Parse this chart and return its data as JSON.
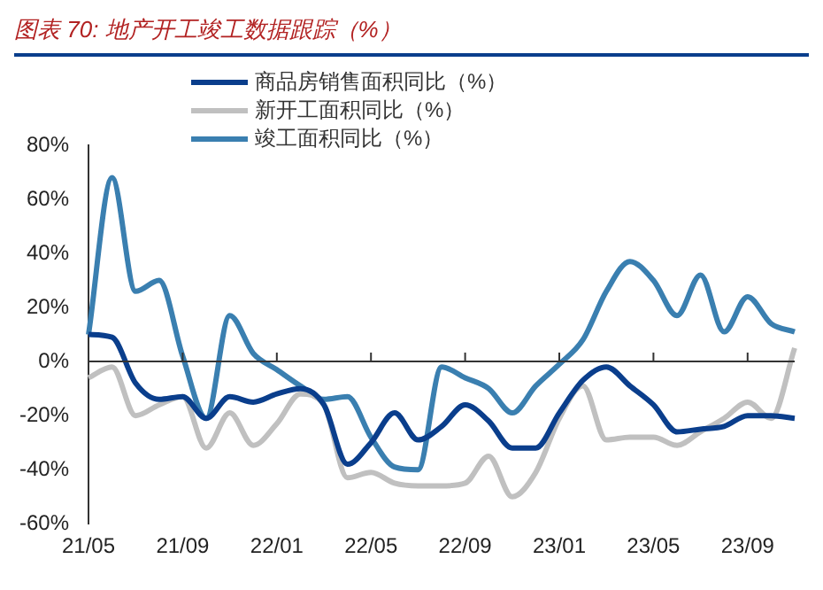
{
  "chart_data": {
    "type": "line",
    "title": "图表 70: 地产开工竣工数据跟踪（%）",
    "categories": [
      "21/05",
      null,
      null,
      null,
      "21/09",
      null,
      null,
      null,
      "22/01",
      null,
      null,
      null,
      "22/05",
      null,
      null,
      null,
      "22/09",
      null,
      null,
      null,
      "23/01",
      null,
      null,
      null,
      "23/05",
      null,
      null,
      null,
      "23/09",
      null,
      null
    ],
    "series": [
      {
        "name": "商品房销售面积同比（%）",
        "color": "#0a3e8c",
        "values": [
          10,
          9,
          -8,
          -14,
          -13,
          -21,
          -13,
          -15,
          -12,
          -10,
          -16,
          -38,
          -30,
          -19,
          -29,
          -24,
          -16,
          -22,
          -32,
          -32,
          -19,
          -7,
          -2,
          -9,
          -16,
          -26,
          -25,
          -24,
          -20,
          -20,
          -21
        ]
      },
      {
        "name": "新开工面积同比（%）",
        "color": "#c0c0c0",
        "values": [
          -6,
          -2,
          -20,
          -16,
          -13,
          -32,
          -19,
          -31,
          -23,
          -12,
          -16,
          -43,
          -41,
          -45,
          -46,
          -46,
          -45,
          -35,
          -50,
          -41,
          -21,
          -9,
          -29,
          -28,
          -28,
          -31,
          -26,
          -21,
          -15,
          -21,
          5
        ]
      },
      {
        "name": "竣工面积同比（%）",
        "color": "#3a7fb0",
        "values": [
          10,
          68,
          26,
          30,
          2,
          -21,
          17,
          3,
          -3,
          -9,
          -14,
          -13,
          -28,
          -39,
          -40,
          -2,
          -6,
          -10,
          -19,
          -9,
          -1,
          8,
          26,
          37,
          30,
          17,
          32,
          11,
          24,
          14,
          11
        ]
      }
    ],
    "ylim": [
      -60,
      80
    ],
    "yticks": [
      {
        "value": -60,
        "label": "-60%"
      },
      {
        "value": -40,
        "label": "-40%"
      },
      {
        "value": -20,
        "label": "-20%"
      },
      {
        "value": 0,
        "label": "0%"
      },
      {
        "value": 20,
        "label": "20%"
      },
      {
        "value": 40,
        "label": "40%"
      },
      {
        "value": 60,
        "label": "60%"
      },
      {
        "value": 80,
        "label": "80%"
      }
    ],
    "ref_lines": [
      {
        "axis": "y",
        "value": 0,
        "color": "#333333",
        "line_style": "solid"
      }
    ],
    "grid": false,
    "legend": "top left",
    "marker": "none",
    "line_style": "solid"
  }
}
